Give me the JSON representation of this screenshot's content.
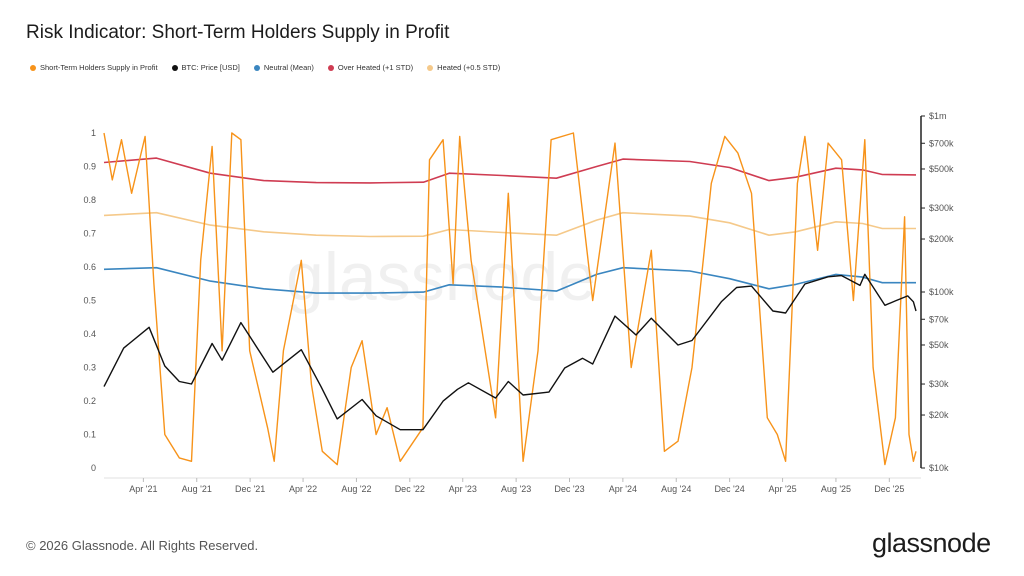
{
  "title": "Risk Indicator: Short-Term Holders Supply in Profit",
  "legend": [
    {
      "label": "Short-Term Holders Supply in Profit",
      "color": "#f7931a"
    },
    {
      "label": "BTC: Price [USD]",
      "color": "#111111"
    },
    {
      "label": "Neutral (Mean)",
      "color": "#3a86c0"
    },
    {
      "label": "Over Heated (+1 STD)",
      "color": "#cf3c52"
    },
    {
      "label": "Heated (+0.5 STD)",
      "color": "#f5c98a"
    }
  ],
  "watermark": "glassnode",
  "footer": {
    "copyright": "© 2026 Glassnode. All Rights Reserved.",
    "logo": "glassnode"
  },
  "chart_data": {
    "type": "line",
    "title": "Risk Indicator: Short-Term Holders Supply in Profit",
    "left_axis": {
      "min": 0,
      "max": 1,
      "ticks": [
        "0",
        "0.1",
        "0.2",
        "0.3",
        "0.4",
        "0.5",
        "0.6",
        "0.7",
        "0.8",
        "0.9",
        "1"
      ]
    },
    "right_axis": {
      "scale": "log",
      "min": 10000,
      "max": 1000000,
      "ticks": [
        {
          "label": "$10k",
          "value": 10000
        },
        {
          "label": "$20k",
          "value": 20000
        },
        {
          "label": "$30k",
          "value": 30000
        },
        {
          "label": "$50k",
          "value": 50000
        },
        {
          "label": "$70k",
          "value": 70000
        },
        {
          "label": "$100k",
          "value": 100000
        },
        {
          "label": "$200k",
          "value": 200000
        },
        {
          "label": "$300k",
          "value": 300000
        },
        {
          "label": "$500k",
          "value": 500000
        },
        {
          "label": "$700k",
          "value": 700000
        },
        {
          "label": "$1m",
          "value": 1000000
        }
      ]
    },
    "x_range": [
      "2021-01-01",
      "2026-01-31"
    ],
    "x_ticks": [
      {
        "label": "Apr '21",
        "date": "2021-04-01"
      },
      {
        "label": "Aug '21",
        "date": "2021-08-01"
      },
      {
        "label": "Dec '21",
        "date": "2021-12-01"
      },
      {
        "label": "Apr '22",
        "date": "2022-04-01"
      },
      {
        "label": "Aug '22",
        "date": "2022-08-01"
      },
      {
        "label": "Dec '22",
        "date": "2022-12-01"
      },
      {
        "label": "Apr '23",
        "date": "2023-04-01"
      },
      {
        "label": "Aug '23",
        "date": "2023-08-01"
      },
      {
        "label": "Dec '23",
        "date": "2023-12-01"
      },
      {
        "label": "Apr '24",
        "date": "2024-04-01"
      },
      {
        "label": "Aug '24",
        "date": "2024-08-01"
      },
      {
        "label": "Dec '24",
        "date": "2024-12-01"
      },
      {
        "label": "Apr '25",
        "date": "2025-04-01"
      },
      {
        "label": "Aug '25",
        "date": "2025-08-01"
      },
      {
        "label": "Dec '25",
        "date": "2025-12-01"
      }
    ],
    "series": [
      {
        "name": "Over Heated (+1 STD)",
        "axis": "left",
        "color": "#cf3c52",
        "points": [
          [
            "2021-01-01",
            0.912
          ],
          [
            "2021-05-01",
            0.925
          ],
          [
            "2021-09-01",
            0.88
          ],
          [
            "2022-01-01",
            0.858
          ],
          [
            "2022-05-01",
            0.852
          ],
          [
            "2022-09-01",
            0.851
          ],
          [
            "2023-01-01",
            0.853
          ],
          [
            "2023-03-01",
            0.88
          ],
          [
            "2023-07-01",
            0.873
          ],
          [
            "2023-11-01",
            0.865
          ],
          [
            "2024-02-01",
            0.9
          ],
          [
            "2024-04-01",
            0.922
          ],
          [
            "2024-09-01",
            0.915
          ],
          [
            "2024-12-01",
            0.897
          ],
          [
            "2025-03-01",
            0.858
          ],
          [
            "2025-05-01",
            0.868
          ],
          [
            "2025-08-01",
            0.895
          ],
          [
            "2025-10-01",
            0.89
          ],
          [
            "2025-11-15",
            0.876
          ],
          [
            "2026-01-31",
            0.875
          ]
        ]
      },
      {
        "name": "Heated (+0.5 STD)",
        "axis": "left",
        "color": "#f5c98a",
        "points": [
          [
            "2021-01-01",
            0.754
          ],
          [
            "2021-05-01",
            0.762
          ],
          [
            "2021-09-01",
            0.725
          ],
          [
            "2022-01-01",
            0.705
          ],
          [
            "2022-05-01",
            0.695
          ],
          [
            "2022-09-01",
            0.691
          ],
          [
            "2023-01-01",
            0.692
          ],
          [
            "2023-03-01",
            0.712
          ],
          [
            "2023-07-01",
            0.703
          ],
          [
            "2023-11-01",
            0.695
          ],
          [
            "2024-02-01",
            0.74
          ],
          [
            "2024-04-01",
            0.762
          ],
          [
            "2024-09-01",
            0.752
          ],
          [
            "2024-12-01",
            0.732
          ],
          [
            "2025-03-01",
            0.695
          ],
          [
            "2025-05-01",
            0.705
          ],
          [
            "2025-08-01",
            0.735
          ],
          [
            "2025-10-01",
            0.73
          ],
          [
            "2025-11-15",
            0.715
          ],
          [
            "2026-01-31",
            0.715
          ]
        ]
      },
      {
        "name": "Neutral (Mean)",
        "axis": "left",
        "color": "#3a86c0",
        "points": [
          [
            "2021-01-01",
            0.593
          ],
          [
            "2021-05-01",
            0.598
          ],
          [
            "2021-09-01",
            0.558
          ],
          [
            "2022-01-01",
            0.535
          ],
          [
            "2022-05-01",
            0.522
          ],
          [
            "2022-09-01",
            0.522
          ],
          [
            "2023-01-01",
            0.525
          ],
          [
            "2023-03-01",
            0.547
          ],
          [
            "2023-07-01",
            0.54
          ],
          [
            "2023-11-01",
            0.528
          ],
          [
            "2024-02-01",
            0.578
          ],
          [
            "2024-04-01",
            0.598
          ],
          [
            "2024-09-01",
            0.588
          ],
          [
            "2024-12-01",
            0.565
          ],
          [
            "2025-03-01",
            0.535
          ],
          [
            "2025-05-01",
            0.548
          ],
          [
            "2025-08-01",
            0.578
          ],
          [
            "2025-10-01",
            0.57
          ],
          [
            "2025-11-15",
            0.553
          ],
          [
            "2026-01-31",
            0.553
          ]
        ]
      },
      {
        "name": "BTC: Price [USD]",
        "axis": "right",
        "color": "#111111",
        "points": [
          [
            "2021-01-01",
            29000
          ],
          [
            "2021-02-15",
            48000
          ],
          [
            "2021-04-14",
            63000
          ],
          [
            "2021-05-20",
            38000
          ],
          [
            "2021-06-22",
            31000
          ],
          [
            "2021-07-20",
            30000
          ],
          [
            "2021-09-05",
            51000
          ],
          [
            "2021-09-28",
            41000
          ],
          [
            "2021-11-10",
            67000
          ],
          [
            "2022-01-22",
            35000
          ],
          [
            "2022-03-28",
            47000
          ],
          [
            "2022-05-12",
            29000
          ],
          [
            "2022-06-18",
            19000
          ],
          [
            "2022-08-14",
            24500
          ],
          [
            "2022-09-15",
            19800
          ],
          [
            "2022-11-09",
            16500
          ],
          [
            "2022-12-31",
            16500
          ],
          [
            "2023-02-15",
            24000
          ],
          [
            "2023-03-20",
            28000
          ],
          [
            "2023-04-14",
            30500
          ],
          [
            "2023-06-15",
            25000
          ],
          [
            "2023-07-14",
            31000
          ],
          [
            "2023-08-17",
            26000
          ],
          [
            "2023-10-15",
            27000
          ],
          [
            "2023-11-20",
            37000
          ],
          [
            "2023-12-31",
            42000
          ],
          [
            "2024-01-23",
            39000
          ],
          [
            "2024-03-14",
            73000
          ],
          [
            "2024-05-01",
            57000
          ],
          [
            "2024-06-05",
            71000
          ],
          [
            "2024-08-05",
            50000
          ],
          [
            "2024-09-06",
            53000
          ],
          [
            "2024-11-12",
            88000
          ],
          [
            "2024-12-17",
            106000
          ],
          [
            "2025-01-20",
            108000
          ],
          [
            "2025-03-10",
            78000
          ],
          [
            "2025-04-08",
            76000
          ],
          [
            "2025-05-22",
            111000
          ],
          [
            "2025-07-14",
            122000
          ],
          [
            "2025-08-14",
            124000
          ],
          [
            "2025-09-25",
            109000
          ],
          [
            "2025-10-06",
            126000
          ],
          [
            "2025-11-21",
            84000
          ],
          [
            "2025-12-15",
            89000
          ],
          [
            "2026-01-12",
            95000
          ],
          [
            "2026-01-25",
            88000
          ],
          [
            "2026-01-31",
            78000
          ]
        ]
      },
      {
        "name": "Short-Term Holders Supply in Profit",
        "axis": "left",
        "color": "#f7931a",
        "points": [
          [
            "2021-01-01",
            1.0
          ],
          [
            "2021-01-20",
            0.86
          ],
          [
            "2021-02-10",
            0.98
          ],
          [
            "2021-03-05",
            0.82
          ],
          [
            "2021-04-05",
            0.99
          ],
          [
            "2021-04-25",
            0.55
          ],
          [
            "2021-05-20",
            0.1
          ],
          [
            "2021-06-22",
            0.03
          ],
          [
            "2021-07-20",
            0.02
          ],
          [
            "2021-08-10",
            0.62
          ],
          [
            "2021-09-05",
            0.96
          ],
          [
            "2021-09-28",
            0.35
          ],
          [
            "2021-10-20",
            1.0
          ],
          [
            "2021-11-10",
            0.98
          ],
          [
            "2021-11-30",
            0.35
          ],
          [
            "2022-01-10",
            0.12
          ],
          [
            "2022-01-25",
            0.02
          ],
          [
            "2022-02-15",
            0.35
          ],
          [
            "2022-03-28",
            0.62
          ],
          [
            "2022-04-20",
            0.25
          ],
          [
            "2022-05-15",
            0.05
          ],
          [
            "2022-06-18",
            0.01
          ],
          [
            "2022-07-20",
            0.3
          ],
          [
            "2022-08-14",
            0.38
          ],
          [
            "2022-09-15",
            0.1
          ],
          [
            "2022-10-10",
            0.18
          ],
          [
            "2022-11-09",
            0.02
          ],
          [
            "2022-12-31",
            0.12
          ],
          [
            "2023-01-15",
            0.92
          ],
          [
            "2023-02-15",
            0.98
          ],
          [
            "2023-03-10",
            0.55
          ],
          [
            "2023-03-25",
            0.99
          ],
          [
            "2023-04-20",
            0.62
          ],
          [
            "2023-06-15",
            0.15
          ],
          [
            "2023-07-14",
            0.82
          ],
          [
            "2023-08-17",
            0.02
          ],
          [
            "2023-09-20",
            0.35
          ],
          [
            "2023-10-20",
            0.98
          ],
          [
            "2023-12-10",
            1.0
          ],
          [
            "2024-01-23",
            0.5
          ],
          [
            "2024-03-14",
            0.97
          ],
          [
            "2024-04-20",
            0.3
          ],
          [
            "2024-06-05",
            0.65
          ],
          [
            "2024-07-05",
            0.05
          ],
          [
            "2024-08-05",
            0.08
          ],
          [
            "2024-09-06",
            0.3
          ],
          [
            "2024-10-20",
            0.85
          ],
          [
            "2024-11-20",
            0.99
          ],
          [
            "2024-12-20",
            0.94
          ],
          [
            "2025-01-20",
            0.82
          ],
          [
            "2025-02-25",
            0.15
          ],
          [
            "2025-03-20",
            0.1
          ],
          [
            "2025-04-08",
            0.02
          ],
          [
            "2025-05-05",
            0.85
          ],
          [
            "2025-05-22",
            0.99
          ],
          [
            "2025-06-20",
            0.65
          ],
          [
            "2025-07-14",
            0.97
          ],
          [
            "2025-08-14",
            0.92
          ],
          [
            "2025-09-10",
            0.5
          ],
          [
            "2025-10-06",
            0.98
          ],
          [
            "2025-10-25",
            0.3
          ],
          [
            "2025-11-21",
            0.01
          ],
          [
            "2025-12-15",
            0.15
          ],
          [
            "2026-01-05",
            0.75
          ],
          [
            "2026-01-15",
            0.1
          ],
          [
            "2026-01-25",
            0.02
          ],
          [
            "2026-01-31",
            0.05
          ]
        ]
      }
    ]
  }
}
